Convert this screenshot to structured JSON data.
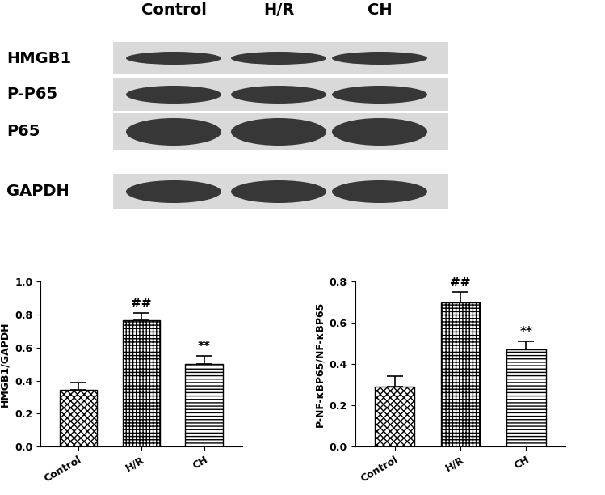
{
  "blot": {
    "lanes": [
      "Control",
      "H/R",
      "CH"
    ],
    "rows": [
      "HMGB1",
      "P-P65",
      "P65",
      "GAPDH"
    ]
  },
  "chart_data": [
    {
      "type": "bar",
      "y_label": "HMGB1/GAPDH",
      "categories": [
        "Control",
        "H/R",
        "CH"
      ],
      "values": [
        0.345,
        0.765,
        0.5
      ],
      "errors": [
        0.045,
        0.045,
        0.05
      ],
      "colors": [
        "#ffffff",
        "#ffffff",
        "#ffffff"
      ],
      "ylim": [
        0,
        1.0
      ],
      "yticks": [
        {
          "value": 0,
          "label": "0.0"
        },
        0.2,
        0.4,
        0.6,
        0.8,
        {
          "value": 1.0,
          "label": "1.0"
        }
      ],
      "annotations": [
        {
          "category": "H/R",
          "text": "##"
        },
        {
          "category": "CH",
          "text": "**"
        }
      ]
    },
    {
      "type": "bar",
      "y_label": "P-NF-κBP65/NF-κBP65",
      "categories": [
        "Control",
        "H/R",
        "CH"
      ],
      "values": [
        0.29,
        0.7,
        0.47
      ],
      "errors": [
        0.05,
        0.05,
        0.04
      ],
      "colors": [
        "#ffffff",
        "#ffffff",
        "#ffffff"
      ],
      "ylim": [
        0,
        0.8
      ],
      "yticks": [
        {
          "value": 0,
          "label": "0.0"
        },
        0.2,
        0.4,
        0.6,
        0.8
      ],
      "annotations": [
        {
          "category": "H/R",
          "text": "##"
        },
        {
          "category": "CH",
          "text": "**"
        }
      ]
    }
  ]
}
